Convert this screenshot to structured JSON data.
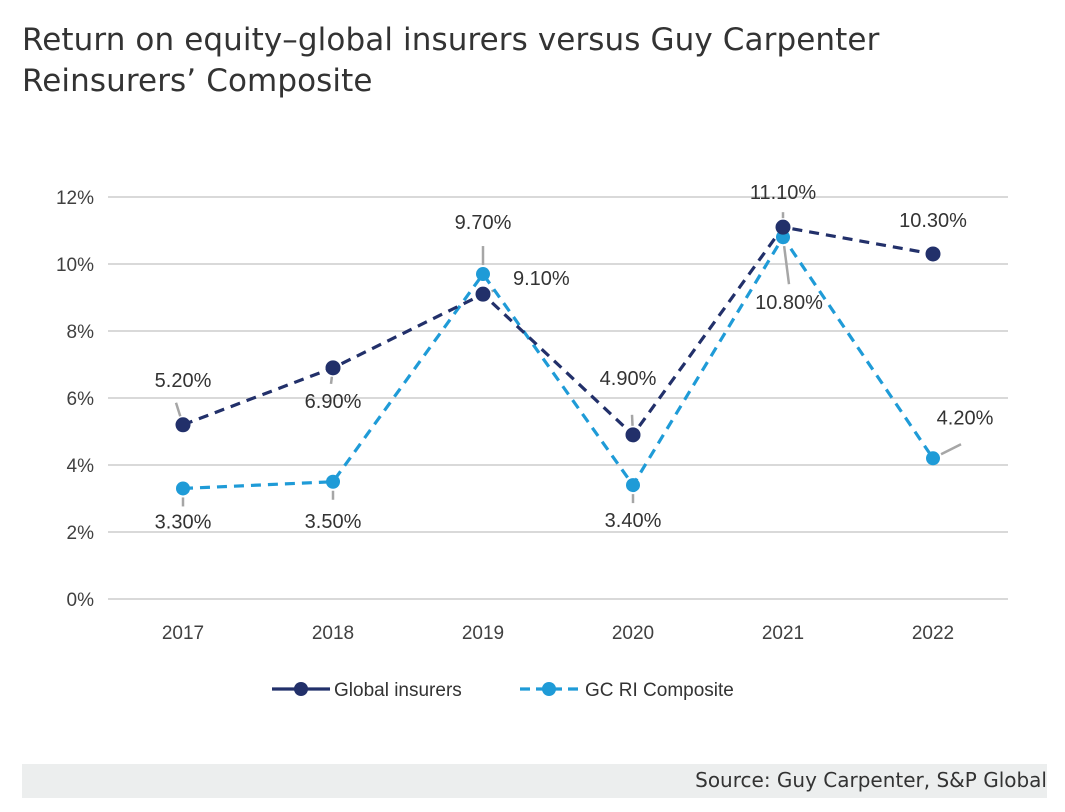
{
  "title": "Return on equity–global insurers versus Guy Carpenter Reinsurers’ Composite",
  "source": "Source: Guy Carpenter, S&P Global",
  "colors": {
    "global": "#22306a",
    "gc": "#1f9bd7",
    "grid": "#d9d9d9",
    "leader": "#a6a6a6"
  },
  "chart_data": {
    "type": "line",
    "categories": [
      "2017",
      "2018",
      "2019",
      "2020",
      "2021",
      "2022"
    ],
    "ylim": [
      0,
      12
    ],
    "yticks": [
      0,
      2,
      4,
      6,
      8,
      10,
      12
    ],
    "ytick_labels": [
      "0%",
      "2%",
      "4%",
      "6%",
      "8%",
      "10%",
      "12%"
    ],
    "grid": true,
    "legend_position": "bottom",
    "series": [
      {
        "name": "Global insurers",
        "values": [
          5.2,
          6.9,
          9.1,
          4.9,
          11.1,
          10.3
        ],
        "labels": [
          "5.20%",
          "6.90%",
          "9.10%",
          "4.90%",
          "11.10%",
          "10.30%"
        ]
      },
      {
        "name": "GC RI Composite",
        "values": [
          3.3,
          3.5,
          9.7,
          3.4,
          10.8,
          4.2
        ],
        "labels": [
          "3.30%",
          "3.50%",
          "9.70%",
          "3.40%",
          "10.80%",
          "4.20%"
        ]
      }
    ]
  }
}
